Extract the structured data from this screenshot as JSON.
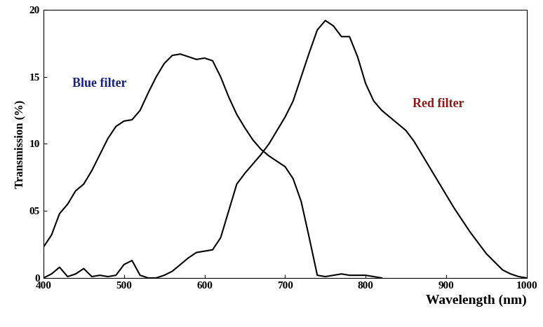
{
  "chart_data": {
    "type": "line",
    "x_label": "Wavelength (nm)",
    "y_label": "Transmission (%)",
    "x": [
      400,
      410,
      420,
      430,
      440,
      450,
      460,
      470,
      480,
      490,
      500,
      510,
      520,
      530,
      540,
      550,
      560,
      570,
      580,
      590,
      600,
      610,
      620,
      630,
      640,
      650,
      660,
      670,
      680,
      690,
      700,
      710,
      720,
      730,
      740,
      750,
      760,
      770,
      780,
      790,
      800,
      810,
      820,
      830,
      840,
      850,
      860,
      870,
      880,
      890,
      900,
      910,
      920,
      930,
      940,
      950,
      960,
      970,
      980,
      990,
      1000
    ],
    "series": [
      {
        "name": "Blue filter",
        "color": "#000000",
        "values": [
          2.3,
          3.2,
          4.8,
          5.5,
          6.5,
          7.0,
          8.0,
          9.2,
          10.4,
          11.3,
          11.7,
          11.8,
          12.5,
          13.8,
          15.0,
          16.0,
          16.6,
          16.7,
          16.5,
          16.3,
          16.4,
          16.2,
          15.0,
          13.5,
          12.2,
          11.2,
          10.3,
          9.6,
          9.1,
          8.7,
          8.3,
          7.4,
          5.7,
          3.0,
          0.2,
          0.1,
          0.2,
          0.3,
          0.2,
          0.2,
          0.2,
          0.1,
          0.0,
          null,
          null,
          null,
          null,
          null,
          null,
          null,
          null,
          null,
          null,
          null,
          null,
          null,
          null,
          null,
          null,
          null,
          null
        ]
      },
      {
        "name": "Red filter",
        "color": "#000000",
        "values": [
          0.0,
          0.3,
          0.8,
          0.1,
          0.3,
          0.7,
          0.1,
          0.2,
          0.1,
          0.2,
          1.0,
          1.3,
          0.2,
          0.0,
          0.0,
          0.2,
          0.5,
          1.0,
          1.5,
          1.9,
          2.0,
          2.1,
          3.0,
          5.0,
          7.0,
          7.8,
          8.5,
          9.2,
          10.0,
          11.0,
          12.0,
          13.2,
          15.0,
          16.8,
          18.5,
          19.2,
          18.8,
          18.0,
          18.0,
          16.5,
          14.5,
          13.2,
          12.5,
          12.0,
          11.5,
          11.0,
          10.2,
          9.2,
          8.2,
          7.2,
          6.2,
          5.2,
          4.3,
          3.4,
          2.6,
          1.8,
          1.2,
          0.6,
          0.3,
          0.1,
          0.0
        ]
      }
    ],
    "xlim": [
      400,
      1000
    ],
    "xticks": [
      400,
      500,
      600,
      700,
      800,
      900,
      1000
    ],
    "ylim": [
      0,
      20
    ],
    "yticks": [
      0,
      {
        "value": 5,
        "label": "05"
      },
      10,
      15,
      20
    ],
    "grid": false
  }
}
